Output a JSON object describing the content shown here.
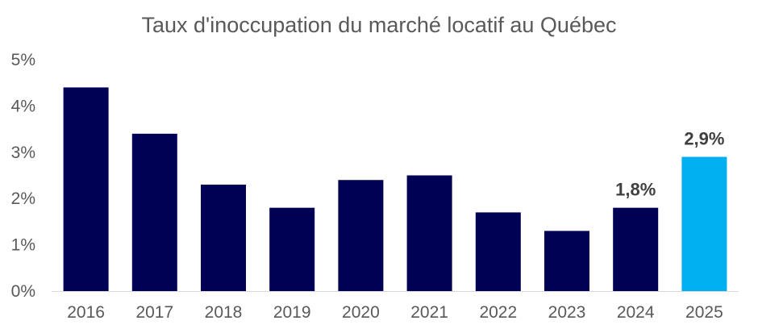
{
  "chart_data": {
    "type": "bar",
    "title": "Taux d'inoccupation du marché locatif au Québec",
    "xlabel": "",
    "ylabel": "",
    "categories": [
      "2016",
      "2017",
      "2018",
      "2019",
      "2020",
      "2021",
      "2022",
      "2023",
      "2024",
      "2025"
    ],
    "values": [
      4.4,
      3.4,
      2.3,
      1.8,
      2.4,
      2.5,
      1.7,
      1.3,
      1.8,
      2.9
    ],
    "ylim": [
      0,
      5
    ],
    "yticks": [
      0,
      1,
      2,
      3,
      4,
      5
    ],
    "ytick_labels": [
      "0%",
      "1%",
      "2%",
      "3%",
      "4%",
      "5%"
    ],
    "data_labels": [
      {
        "category": "2024",
        "text": "1,8%"
      },
      {
        "category": "2025",
        "text": "2,9%"
      }
    ],
    "grid": false,
    "colors": {
      "default_bar": "#000054",
      "highlight_bar": "#00b0f0",
      "highlight_category": "2025"
    }
  }
}
